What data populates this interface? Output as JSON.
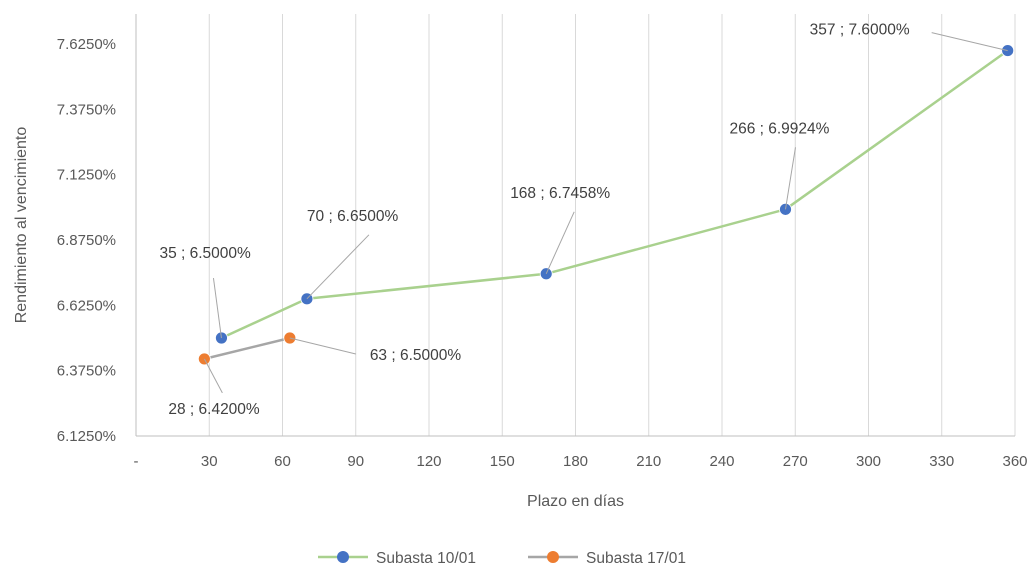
{
  "chart_data": {
    "type": "line",
    "xlabel": "Plazo en días",
    "ylabel": "Rendimiento al vencimiento",
    "xlim": [
      0,
      360
    ],
    "ylim": [
      6.125,
      7.74
    ],
    "x_ticks": [
      {
        "value": 0,
        "label": "-"
      },
      {
        "value": 30,
        "label": "30"
      },
      {
        "value": 60,
        "label": "60"
      },
      {
        "value": 90,
        "label": "90"
      },
      {
        "value": 120,
        "label": "120"
      },
      {
        "value": 150,
        "label": "150"
      },
      {
        "value": 180,
        "label": "180"
      },
      {
        "value": 210,
        "label": "210"
      },
      {
        "value": 240,
        "label": "240"
      },
      {
        "value": 270,
        "label": "270"
      },
      {
        "value": 300,
        "label": "300"
      },
      {
        "value": 330,
        "label": "330"
      },
      {
        "value": 360,
        "label": "360"
      }
    ],
    "y_ticks": [
      {
        "value": 6.125,
        "label": "6.1250%"
      },
      {
        "value": 6.375,
        "label": "6.3750%"
      },
      {
        "value": 6.625,
        "label": "6.6250%"
      },
      {
        "value": 6.875,
        "label": "6.8750%"
      },
      {
        "value": 7.125,
        "label": "7.1250%"
      },
      {
        "value": 7.375,
        "label": "7.3750%"
      },
      {
        "value": 7.625,
        "label": "7.6250%"
      }
    ],
    "grid": "vertical",
    "legend_position": "bottom",
    "series": [
      {
        "name": "Subasta 10/01",
        "line_color": "#a9d18e",
        "marker_color": "#4472c4",
        "x": [
          35,
          70,
          168,
          266,
          357
        ],
        "y": [
          6.5,
          6.65,
          6.7458,
          6.9924,
          7.6
        ],
        "labels": [
          "35 ; 6.5000%",
          "70 ; 6.6500%",
          "168 ; 6.7458%",
          "266 ; 6.9924%",
          "357 ; 7.6000%"
        ]
      },
      {
        "name": "Subasta 17/01",
        "line_color": "#a6a6a6",
        "marker_color": "#ed7d31",
        "x": [
          28,
          63
        ],
        "y": [
          6.42,
          6.5
        ],
        "labels": [
          "28 ; 6.4200%",
          "63 ; 6.5000%"
        ]
      }
    ]
  }
}
